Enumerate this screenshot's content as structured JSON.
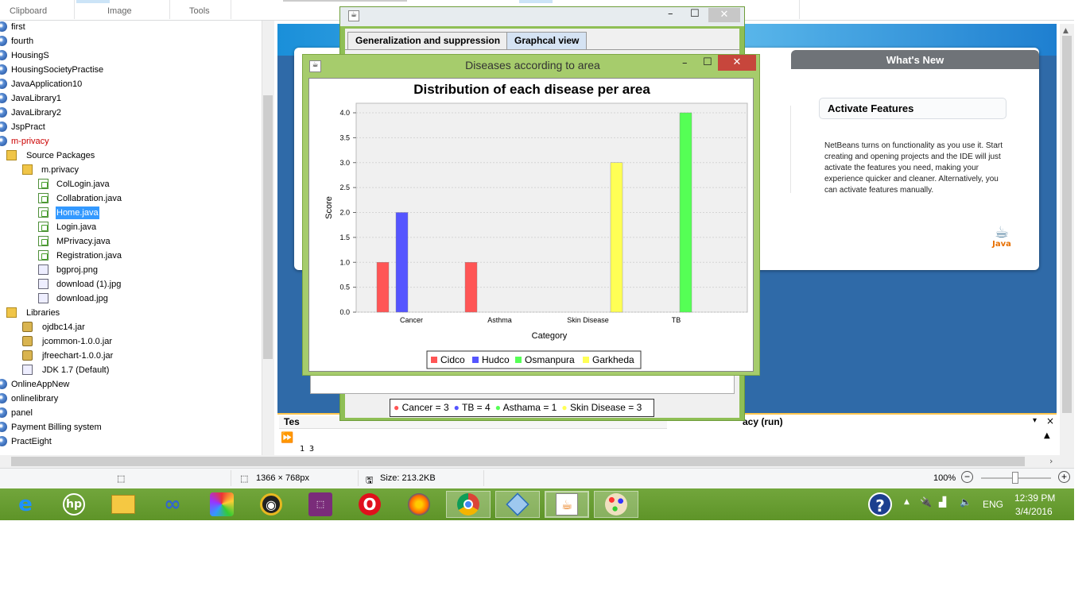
{
  "ribbon": {
    "groups": [
      "Clipboard",
      "Image",
      "Tools"
    ]
  },
  "tree": {
    "items": [
      {
        "label": "first",
        "type": "project",
        "indent": 0
      },
      {
        "label": "fourth",
        "type": "project",
        "indent": 0
      },
      {
        "label": "HousingS",
        "type": "project",
        "indent": 0
      },
      {
        "label": "HousingSocietyPractise",
        "type": "project",
        "indent": 0
      },
      {
        "label": "JavaApplication10",
        "type": "project",
        "indent": 0
      },
      {
        "label": "JavaLibrary1",
        "type": "project",
        "indent": 0
      },
      {
        "label": "JavaLibrary2",
        "type": "project",
        "indent": 0
      },
      {
        "label": "JspPract",
        "type": "project",
        "indent": 0
      },
      {
        "label": "m-privacy",
        "type": "project-red",
        "indent": 0
      },
      {
        "label": "Source Packages",
        "type": "package-folder",
        "indent": 1
      },
      {
        "label": "m.privacy",
        "type": "package",
        "indent": 2
      },
      {
        "label": "ColLogin.java",
        "type": "java",
        "indent": 3
      },
      {
        "label": "Collabration.java",
        "type": "java",
        "indent": 3
      },
      {
        "label": "Home.java",
        "type": "java-selected",
        "indent": 3
      },
      {
        "label": "Login.java",
        "type": "java",
        "indent": 3
      },
      {
        "label": "MPrivacy.java",
        "type": "java",
        "indent": 3
      },
      {
        "label": "Registration.java",
        "type": "java",
        "indent": 3
      },
      {
        "label": "bgproj.png",
        "type": "image",
        "indent": 3
      },
      {
        "label": "download (1).jpg",
        "type": "image",
        "indent": 3
      },
      {
        "label": "download.jpg",
        "type": "image",
        "indent": 3
      },
      {
        "label": "Libraries",
        "type": "package-folder",
        "indent": 1
      },
      {
        "label": "ojdbc14.jar",
        "type": "jar",
        "indent": 2
      },
      {
        "label": "jcommon-1.0.0.jar",
        "type": "jar",
        "indent": 2
      },
      {
        "label": "jfreechart-1.0.0.jar",
        "type": "jar",
        "indent": 2
      },
      {
        "label": "JDK 1.7 (Default)",
        "type": "jdk",
        "indent": 2
      },
      {
        "label": "OnlineAppNew",
        "type": "project",
        "indent": 0
      },
      {
        "label": "onlinelibrary",
        "type": "project",
        "indent": 0
      },
      {
        "label": "panel",
        "type": "project",
        "indent": 0
      },
      {
        "label": "Payment Billing system",
        "type": "project",
        "indent": 0
      },
      {
        "label": "PractEight",
        "type": "project",
        "indent": 0
      }
    ]
  },
  "welcome": {
    "whats_new": "What's New",
    "activate_title": "Activate Features",
    "activate_text": "NetBeans turns on functionality as you use it. Start creating and opening projects and the IDE will just activate the features you need, making your experience quicker and cleaner. Alternatively, you can activate features manually.",
    "java_logo": "Java"
  },
  "output": {
    "left_tab": "Tes",
    "right_tab": "acy (run)",
    "console_text": "1  3"
  },
  "back_window": {
    "tabs": [
      "Generalization and suppression",
      "Graphcal view"
    ],
    "active_tab": 1,
    "legend": [
      {
        "label": "Cancer = 3",
        "color": "#ff5555"
      },
      {
        "label": "TB = 4",
        "color": "#5555ff"
      },
      {
        "label": "Asthama = 1",
        "color": "#55ff55"
      },
      {
        "label": "Skin Disease = 3",
        "color": "#ffff55"
      }
    ]
  },
  "front_window": {
    "title": "Diseases according to area"
  },
  "chart_data": {
    "type": "bar",
    "title": "Distribution of each disease per area",
    "xlabel": "Category",
    "ylabel": "Score",
    "categories": [
      "Cancer",
      "Asthma",
      "Skin Disease",
      "TB"
    ],
    "series": [
      {
        "name": "Cidco",
        "color": "#ff5555",
        "values": [
          1,
          1,
          0,
          0
        ]
      },
      {
        "name": "Hudco",
        "color": "#5555ff",
        "values": [
          2,
          0,
          0,
          0
        ]
      },
      {
        "name": "Osmanpura",
        "color": "#55ff55",
        "values": [
          0,
          0,
          0,
          4
        ]
      },
      {
        "name": "Garkheda",
        "color": "#ffff55",
        "values": [
          0,
          0,
          3,
          0
        ]
      }
    ],
    "ylim": [
      0,
      4.0
    ],
    "yticks": [
      "0.0",
      "0.5",
      "1.0",
      "1.5",
      "2.0",
      "2.5",
      "3.0",
      "3.5",
      "4.0"
    ],
    "grid": true,
    "legend": "bottom"
  },
  "statusbar": {
    "dimensions": "1366 × 768px",
    "size": "Size: 213.2KB",
    "zoom": "100%"
  },
  "taskbar": {
    "apps": [
      "internet-explorer",
      "hp",
      "file-explorer",
      "infinity",
      "puzzle",
      "media-player",
      "remote",
      "opera",
      "firefox",
      "chrome",
      "virtualbox",
      "java",
      "paint"
    ],
    "language": "ENG",
    "time": "12:39 PM",
    "date": "3/4/2016"
  }
}
